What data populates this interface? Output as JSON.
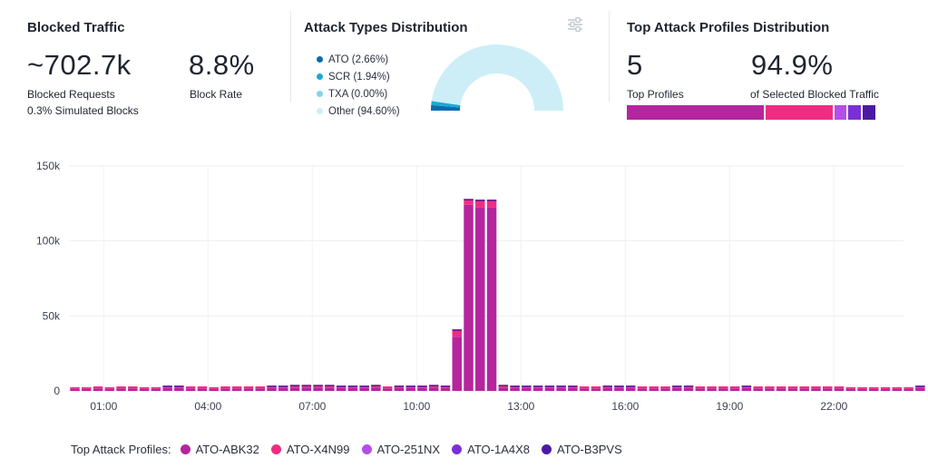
{
  "blocked_traffic": {
    "title": "Blocked Traffic",
    "requests_value": "~702.7k",
    "requests_label": "Blocked Requests",
    "simulated_label": "0.3% Simulated Blocks",
    "rate_value": "8.8%",
    "rate_label": "Block Rate"
  },
  "attack_types": {
    "title": "Attack Types Distribution",
    "filter_icon": "sliders-icon",
    "legend": [
      {
        "label": "ATO (2.66%)",
        "color": "#0b6bb0"
      },
      {
        "label": "SCR (1.94%)",
        "color": "#1aa8d6"
      },
      {
        "label": "TXA (0.00%)",
        "color": "#7fd6ea"
      },
      {
        "label": "Other (94.60%)",
        "color": "#cdeef6"
      }
    ],
    "donut": [
      {
        "name": "ATO",
        "value": 2.66,
        "color": "#0b6bb0"
      },
      {
        "name": "SCR",
        "value": 1.94,
        "color": "#1aa8d6"
      },
      {
        "name": "TXA",
        "value": 0.0,
        "color": "#7fd6ea"
      },
      {
        "name": "Other",
        "value": 94.6,
        "color": "#cdeef6"
      }
    ]
  },
  "top_profiles": {
    "title": "Top Attack Profiles Distribution",
    "count_value": "5",
    "count_label": "Top Profiles",
    "share_value": "94.9%",
    "share_label": "of Selected Blocked Traffic",
    "segments": [
      {
        "name": "ATO-ABK32",
        "share": 0.553,
        "color": "#b5259e"
      },
      {
        "name": "ATO-X4N99",
        "share": 0.27,
        "color": "#ee2d82"
      },
      {
        "name": "ATO-251NX",
        "share": 0.05,
        "color": "#b44ee8"
      },
      {
        "name": "ATO-1A4X8",
        "share": 0.05,
        "color": "#7b30d6"
      },
      {
        "name": "ATO-B3PVS",
        "share": 0.05,
        "color": "#4b1aa3"
      }
    ]
  },
  "chart_data": {
    "type": "bar",
    "stacked": true,
    "y_ticks": [
      "150k",
      "100k",
      "50k",
      "0"
    ],
    "ylim": [
      0,
      150000
    ],
    "x_tick_labels": [
      "01:00",
      "04:00",
      "07:00",
      "10:00",
      "13:00",
      "16:00",
      "19:00",
      "22:00"
    ],
    "x_tick_hours": [
      1,
      4,
      7,
      10,
      13,
      16,
      19,
      22
    ],
    "x_start_hour": 0,
    "x_end_hour": 24,
    "bar_interval_hours": 0.333,
    "grid": true,
    "series_names": [
      "ATO-ABK32",
      "ATO-X4N99",
      "ATO-251NX",
      "ATO-1A4X8",
      "ATO-B3PVS"
    ],
    "series_colors": [
      "#b5259e",
      "#ee2d82",
      "#b44ee8",
      "#7b30d6",
      "#4b1aa3"
    ],
    "totals": [
      2500,
      2500,
      3000,
      2500,
      3000,
      3000,
      2500,
      2500,
      3500,
      3500,
      3000,
      3000,
      2500,
      3000,
      3000,
      3000,
      3000,
      3500,
      3500,
      4000,
      4000,
      4000,
      4000,
      3500,
      3500,
      3500,
      4000,
      3000,
      3500,
      3500,
      3500,
      4000,
      3500,
      41000,
      128000,
      127500,
      127500,
      4000,
      3500,
      3500,
      3500,
      3500,
      3500,
      3500,
      3000,
      3000,
      3500,
      3500,
      3500,
      3000,
      3000,
      3000,
      3500,
      3500,
      3000,
      3000,
      3000,
      3000,
      3500,
      3000,
      3000,
      3000,
      3000,
      3000,
      3000,
      3000,
      3000,
      2500,
      2500,
      2500,
      2500,
      2500,
      2500,
      3500
    ],
    "bottom_share": [
      0.55,
      0.55,
      0.55,
      0.55,
      0.55,
      0.55,
      0.55,
      0.55,
      0.55,
      0.55,
      0.55,
      0.55,
      0.55,
      0.55,
      0.55,
      0.55,
      0.55,
      0.55,
      0.55,
      0.55,
      0.55,
      0.55,
      0.55,
      0.55,
      0.55,
      0.55,
      0.55,
      0.55,
      0.55,
      0.55,
      0.55,
      0.55,
      0.55,
      0.88,
      0.97,
      0.96,
      0.96,
      0.55,
      0.55,
      0.55,
      0.55,
      0.55,
      0.55,
      0.55,
      0.55,
      0.55,
      0.55,
      0.55,
      0.55,
      0.55,
      0.55,
      0.55,
      0.55,
      0.55,
      0.55,
      0.55,
      0.55,
      0.55,
      0.55,
      0.55,
      0.55,
      0.55,
      0.55,
      0.55,
      0.55,
      0.55,
      0.55,
      0.55,
      0.55,
      0.55,
      0.55,
      0.55,
      0.55,
      0.55
    ]
  },
  "bottom_legend": {
    "title": "Top Attack Profiles:",
    "items": [
      {
        "label": "ATO-ABK32",
        "color": "#b5259e"
      },
      {
        "label": "ATO-X4N99",
        "color": "#ee2d82"
      },
      {
        "label": "ATO-251NX",
        "color": "#b44ee8"
      },
      {
        "label": "ATO-1A4X8",
        "color": "#7b30d6"
      },
      {
        "label": "ATO-B3PVS",
        "color": "#4b1aa3"
      }
    ]
  }
}
